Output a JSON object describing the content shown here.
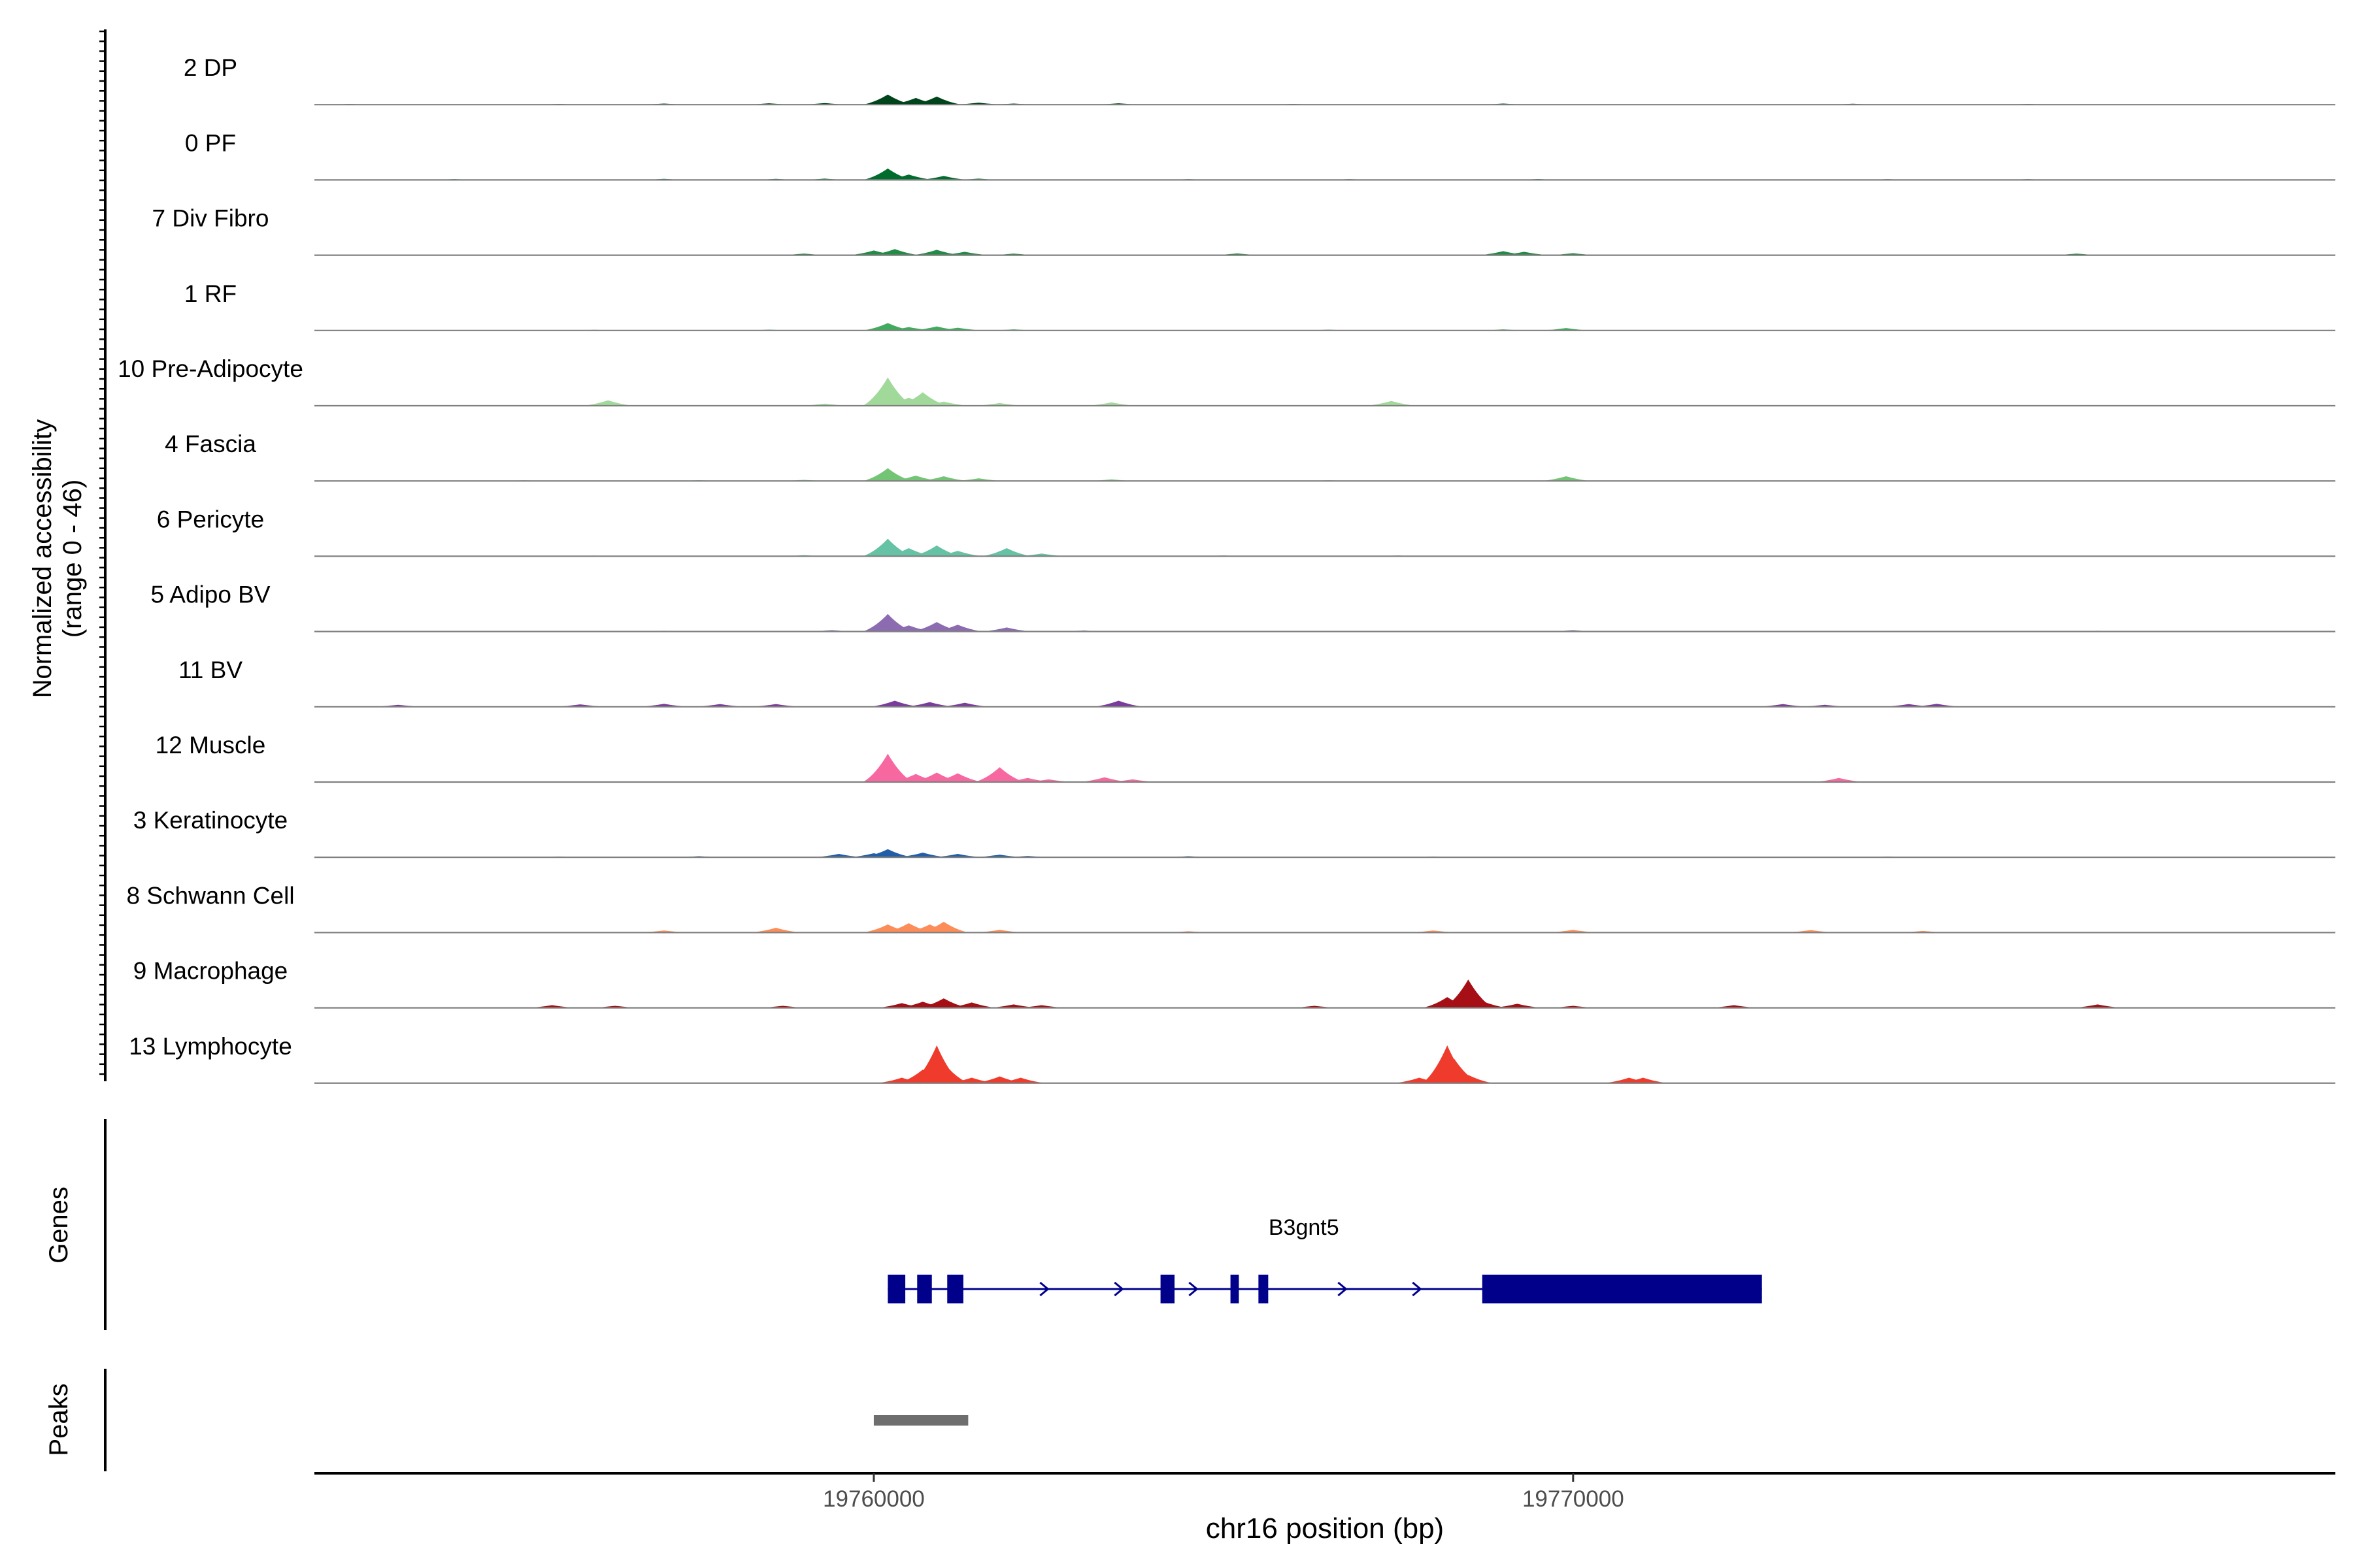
{
  "chart_data": {
    "type": "area",
    "title": "",
    "track_ylabel": [
      "Normalized accessibility",
      "(range 0 - 46)"
    ],
    "genes_label": "Genes",
    "peaks_label": "Peaks",
    "xlabel": "chr16 position (bp)",
    "xlim": [
      19752000,
      19780900
    ],
    "ylim": [
      0,
      46
    ],
    "x_ticks": [
      19760000,
      19770000
    ],
    "x_tick_labels": [
      "19760000",
      "19770000"
    ],
    "tracks": [
      {
        "name": "2 DP",
        "color": "#00441b",
        "x": [
          19752500,
          19755500,
          19757000,
          19758500,
          19759300,
          19760200,
          19760600,
          19760900,
          19761500,
          19762000,
          19763500,
          19766000,
          19769000,
          19774000,
          19776500
        ],
        "y": [
          0.5,
          0.6,
          0.8,
          1.0,
          1.2,
          7.5,
          5.0,
          6.0,
          1.5,
          0.8,
          1.0,
          0.6,
          0.8,
          0.7,
          0.6
        ]
      },
      {
        "name": "0 PF",
        "color": "#006d2c",
        "x": [
          19754000,
          19757000,
          19758600,
          19759300,
          19760200,
          19760500,
          19761000,
          19761500,
          19764500,
          19766800,
          19769500,
          19774500,
          19776500
        ],
        "y": [
          0.6,
          0.8,
          0.8,
          1.0,
          8.5,
          4.0,
          3.0,
          1.0,
          0.6,
          0.6,
          0.7,
          0.6,
          0.6
        ]
      },
      {
        "name": "7 Div Fibro",
        "color": "#238b45",
        "x": [
          19759000,
          19760000,
          19760300,
          19760900,
          19761300,
          19762000,
          19765200,
          19769000,
          19769300,
          19770000,
          19777200
        ],
        "y": [
          1.2,
          3.5,
          4.5,
          4.0,
          2.5,
          1.2,
          1.3,
          3.0,
          2.5,
          1.5,
          1.2
        ]
      },
      {
        "name": "1 RF",
        "color": "#41ab5d",
        "x": [
          19756000,
          19758500,
          19760200,
          19760500,
          19760900,
          19761200,
          19762000,
          19766500,
          19769000,
          19769900
        ],
        "y": [
          0.5,
          0.6,
          5.5,
          2.5,
          3.0,
          2.0,
          0.8,
          0.6,
          0.8,
          1.8
        ]
      },
      {
        "name": "10 Pre-Adipocyte",
        "color": "#a1d99b",
        "x": [
          19756200,
          19759300,
          19760200,
          19760500,
          19760700,
          19761000,
          19761800,
          19763400,
          19767400
        ],
        "y": [
          4.0,
          1.5,
          21.0,
          6.0,
          10.0,
          3.0,
          2.0,
          2.5,
          3.5
        ]
      },
      {
        "name": "4 Fascia",
        "color": "#74c476",
        "x": [
          19755000,
          19757500,
          19759000,
          19760200,
          19760600,
          19761000,
          19761500,
          19763400,
          19766500,
          19769900
        ],
        "y": [
          0.5,
          0.6,
          0.8,
          9.5,
          4.0,
          3.5,
          2.0,
          1.2,
          0.6,
          3.5
        ]
      },
      {
        "name": "6 Pericyte",
        "color": "#66c2a4",
        "x": [
          19756000,
          19759000,
          19760200,
          19760500,
          19760900,
          19761200,
          19761900,
          19762400,
          19765000,
          19767500
        ],
        "y": [
          0.5,
          0.8,
          13.0,
          6.0,
          8.0,
          4.0,
          6.0,
          2.0,
          0.6,
          0.6
        ]
      },
      {
        "name": "5 Adipo BV",
        "color": "#8c6bb1",
        "x": [
          19757000,
          19759400,
          19760200,
          19760500,
          19760900,
          19761200,
          19761900,
          19763000,
          19770000,
          19777500
        ],
        "y": [
          0.6,
          1.0,
          13.0,
          4.5,
          7.0,
          5.0,
          3.0,
          0.8,
          1.0,
          0.6
        ]
      },
      {
        "name": "11 BV",
        "color": "#7a3b9a",
        "x": [
          19753200,
          19755800,
          19757000,
          19757800,
          19758600,
          19760300,
          19760800,
          19761300,
          19763500,
          19773000,
          19773600,
          19774800,
          19775200
        ],
        "y": [
          1.5,
          1.8,
          2.2,
          2.0,
          2.0,
          4.5,
          3.5,
          3.0,
          4.5,
          2.0,
          1.5,
          2.0,
          2.2
        ]
      },
      {
        "name": "12 Muscle",
        "color": "#f768a1",
        "x": [
          19760200,
          19760600,
          19760900,
          19761200,
          19761800,
          19762200,
          19762500,
          19763300,
          19763700,
          19773800
        ],
        "y": [
          21.0,
          6.0,
          7.0,
          6.5,
          11.0,
          3.0,
          2.0,
          3.5,
          2.0,
          3.0
        ]
      },
      {
        "name": "3 Keratinocyte",
        "color": "#225ea8",
        "x": [
          19755500,
          19757500,
          19759500,
          19760000,
          19760200,
          19760700,
          19761200,
          19761800,
          19762200,
          19764500,
          19768000,
          19774500
        ],
        "y": [
          0.6,
          0.8,
          2.5,
          3.0,
          6.0,
          3.5,
          2.5,
          2.0,
          1.0,
          0.8,
          0.6,
          0.6
        ]
      },
      {
        "name": "8 Schwann Cell",
        "color": "#fc8d59",
        "x": [
          19757000,
          19758600,
          19760200,
          19760500,
          19760800,
          19761000,
          19761800,
          19764500,
          19768000,
          19770000,
          19773400,
          19775000
        ],
        "y": [
          1.5,
          3.5,
          6.0,
          7.0,
          6.0,
          8.0,
          2.0,
          1.0,
          1.5,
          2.0,
          1.8,
          1.2
        ]
      },
      {
        "name": "9 Macrophage",
        "color": "#a50f15",
        "x": [
          19755400,
          19756300,
          19758700,
          19760400,
          19760700,
          19761000,
          19761400,
          19762000,
          19762400,
          19766300,
          19768200,
          19768500,
          19768700,
          19769200,
          19770000,
          19772300,
          19777500
        ],
        "y": [
          2.0,
          1.5,
          1.5,
          3.5,
          4.5,
          7.0,
          4.0,
          2.5,
          2.0,
          1.5,
          8.0,
          21.0,
          5.0,
          3.0,
          1.5,
          2.0,
          2.5
        ]
      },
      {
        "name": "13 Lymphocyte",
        "color": "#ef3b2c",
        "x": [
          19760400,
          19760700,
          19760900,
          19761000,
          19761400,
          19761800,
          19762100,
          19767800,
          19768200,
          19768300,
          19768500,
          19770800,
          19771000
        ],
        "y": [
          4.0,
          10.0,
          28.0,
          15.0,
          4.0,
          5.0,
          4.0,
          4.0,
          28.0,
          18.0,
          6.0,
          4.0,
          4.0
        ]
      }
    ],
    "genes": [
      {
        "name": "B3gnt5",
        "color": "#00008b",
        "strand": "+",
        "start": 19760200,
        "end": 19772700,
        "exons": [
          [
            19760200,
            19760450
          ],
          [
            19760620,
            19760830
          ],
          [
            19761050,
            19761280
          ],
          [
            19764100,
            19764300
          ],
          [
            19765100,
            19765220
          ],
          [
            19765500,
            19765640
          ],
          [
            19768700,
            19772700
          ]
        ]
      }
    ],
    "peaks": [
      {
        "start": 19760000,
        "end": 19761350,
        "color": "#6e6e6e"
      }
    ]
  }
}
